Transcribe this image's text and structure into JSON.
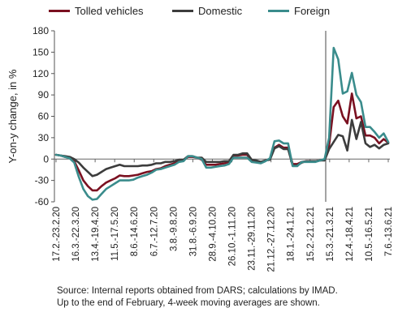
{
  "chart_data": {
    "type": "line",
    "ylabel": "Y-on-y change, in %",
    "xlabel": "",
    "ylim": [
      -60,
      180
    ],
    "yticks": [
      -60,
      -30,
      0,
      30,
      60,
      90,
      120,
      150,
      180
    ],
    "grid": false,
    "legend_position": "top",
    "x_tick_labels": [
      "17.2.-23.2.20",
      "16.3.-22.3.20",
      "13.4.-19.4.20",
      "11.5.-17.5.20",
      "8.6.-14.6.20",
      "6.7.-12.7.20",
      "3.8.-9.8.20",
      "31.8.-6.9.20",
      "28.9.-4.10.20",
      "26.10.-1.11.20",
      "23.11.-29.11.20",
      "21.12.-27.12.20",
      "18.1.-24.1.21",
      "15.2.-21.2.21",
      "15.3.-21.3.21",
      "12.4.-18.4.21",
      "10.5.-16.5.21",
      "7.6.-13.6.21"
    ],
    "vertical_marker_tick": 13.8,
    "series": [
      {
        "name": "Tolled vehicles",
        "color": "#7a1020",
        "values": [
          6,
          5,
          3,
          2,
          -3,
          -16,
          -30,
          -38,
          -44,
          -44,
          -38,
          -33,
          -30,
          -27,
          -23,
          -24,
          -24,
          -23,
          -22,
          -20,
          -18,
          -17,
          -14,
          -13,
          -10,
          -8,
          -6,
          -2,
          -2,
          3,
          3,
          2,
          -1,
          -8,
          -8,
          -8,
          -7,
          -6,
          -4,
          5,
          5,
          6,
          6,
          -2,
          -3,
          -5,
          -2,
          0,
          16,
          20,
          16,
          16,
          -7,
          -7,
          -4,
          -3,
          -3,
          -3,
          -2,
          -1,
          20,
          73,
          82,
          60,
          50,
          92,
          57,
          60,
          33,
          33,
          30,
          22,
          28,
          23
        ]
      },
      {
        "name": "Domestic",
        "color": "#3c3c3c",
        "values": [
          6,
          5,
          4,
          3,
          0,
          -5,
          -12,
          -18,
          -24,
          -22,
          -18,
          -14,
          -12,
          -10,
          -8,
          -10,
          -10,
          -10,
          -10,
          -9,
          -9,
          -8,
          -6,
          -6,
          -4,
          -4,
          -3,
          -1,
          -1,
          4,
          4,
          2,
          2,
          -4,
          -4,
          -4,
          -4,
          -3,
          -3,
          6,
          6,
          8,
          8,
          -1,
          -2,
          -4,
          -2,
          -1,
          15,
          18,
          14,
          14,
          -9,
          -9,
          -5,
          -3,
          -3,
          -3,
          -2,
          -2,
          14,
          24,
          34,
          32,
          12,
          55,
          28,
          52,
          22,
          17,
          20,
          15,
          20,
          22
        ]
      },
      {
        "name": "Foreign",
        "color": "#3a8c8c",
        "values": [
          6,
          5,
          3,
          1,
          -5,
          -25,
          -42,
          -52,
          -57,
          -56,
          -49,
          -42,
          -38,
          -34,
          -30,
          -30,
          -30,
          -29,
          -26,
          -24,
          -22,
          -19,
          -15,
          -14,
          -12,
          -10,
          -8,
          -4,
          -3,
          4,
          4,
          2,
          0,
          -12,
          -12,
          -11,
          -10,
          -9,
          -7,
          2,
          2,
          2,
          2,
          -4,
          -5,
          -6,
          -3,
          1,
          25,
          26,
          22,
          22,
          -10,
          -10,
          -4,
          -4,
          -4,
          -4,
          -2,
          0,
          30,
          156,
          140,
          92,
          95,
          121,
          90,
          80,
          45,
          45,
          38,
          30,
          36,
          24
        ]
      }
    ]
  },
  "source_text": {
    "line1": "Source: Internal reports obtained from DARS; calculations by IMAD.",
    "line2": "Up to the end of February, 4-week moving averages are shown."
  }
}
